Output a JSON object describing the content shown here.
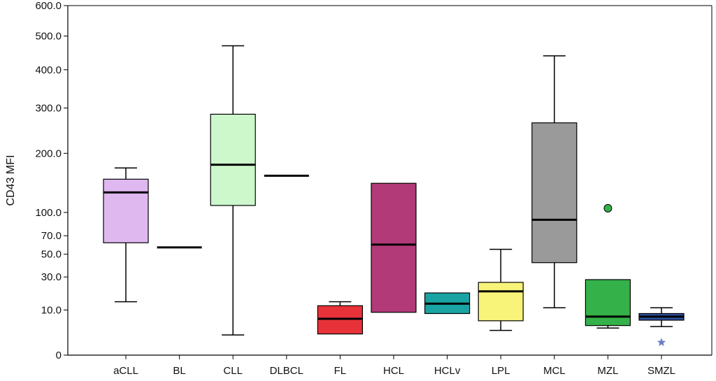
{
  "chart_data": {
    "type": "boxplot",
    "ylabel": "CD43 MFI",
    "yscale": "sqrt",
    "ylim": [
      0,
      600
    ],
    "yticks": [
      {
        "value": 0,
        "label": "0"
      },
      {
        "value": 10,
        "label": "10.0"
      },
      {
        "value": 30,
        "label": "30.0"
      },
      {
        "value": 50,
        "label": "50.0"
      },
      {
        "value": 70,
        "label": "70.0"
      },
      {
        "value": 100,
        "label": "100.0"
      },
      {
        "value": 200,
        "label": "200.0"
      },
      {
        "value": 300,
        "label": "300.0"
      },
      {
        "value": 400,
        "label": "400.0"
      },
      {
        "value": 500,
        "label": "500.0"
      },
      {
        "value": 600,
        "label": "600.0"
      }
    ],
    "categories": [
      "aCLL",
      "BL",
      "CLL",
      "DLBCL",
      "FL",
      "HCL",
      "HCLv",
      "LPL",
      "MCL",
      "MZL",
      "SMZL"
    ],
    "boxes": [
      {
        "category": "aCLL",
        "min": 14,
        "q1": 62,
        "median": 130,
        "q3": 152,
        "max": 172,
        "color": "#e0b8f0"
      },
      {
        "category": "BL",
        "min": 57,
        "q1": 57,
        "median": 57,
        "q3": 57,
        "max": 57,
        "color": "#ffffff"
      },
      {
        "category": "CLL",
        "min": 2,
        "q1": 110,
        "median": 178,
        "q3": 285,
        "max": 470,
        "color": "#ccf8cc"
      },
      {
        "category": "DLBCL",
        "min": 158,
        "q1": 158,
        "median": 158,
        "q3": 158,
        "max": 158,
        "color": "#ffffff"
      },
      {
        "category": "FL",
        "min": 2.2,
        "q1": 2.2,
        "median": 6.5,
        "q3": 12,
        "max": 14,
        "color": "#e8323a"
      },
      {
        "category": "HCL",
        "min": 9,
        "q1": 9,
        "median": 60,
        "q3": 145,
        "max": 145,
        "color": "#b23a78"
      },
      {
        "category": "HCLv",
        "min": 8.5,
        "q1": 8.5,
        "median": 13,
        "q3": 19,
        "max": 19,
        "color": "#1aa3a3"
      },
      {
        "category": "LPL",
        "min": 3,
        "q1": 5.8,
        "median": 20,
        "q3": 26,
        "max": 55,
        "color": "#f8f47a"
      },
      {
        "category": "MCL",
        "min": 11,
        "q1": 42,
        "median": 90,
        "q3": 265,
        "max": 440,
        "color": "#9a9a9a"
      },
      {
        "category": "MZL",
        "min": 3.6,
        "q1": 4.3,
        "median": 7.3,
        "q3": 28,
        "max": 28,
        "color": "#35b14a"
      },
      {
        "category": "SMZL",
        "min": 4,
        "q1": 6,
        "median": 7.3,
        "q3": 8.5,
        "max": 11,
        "color": "#2e4f9e"
      }
    ],
    "outliers": [
      {
        "category": "MZL",
        "value": 106,
        "marker": "circle",
        "color": "#35b14a"
      },
      {
        "category": "SMZL",
        "value": 0.8,
        "marker": "star",
        "color": "#6a7fc8"
      }
    ]
  }
}
